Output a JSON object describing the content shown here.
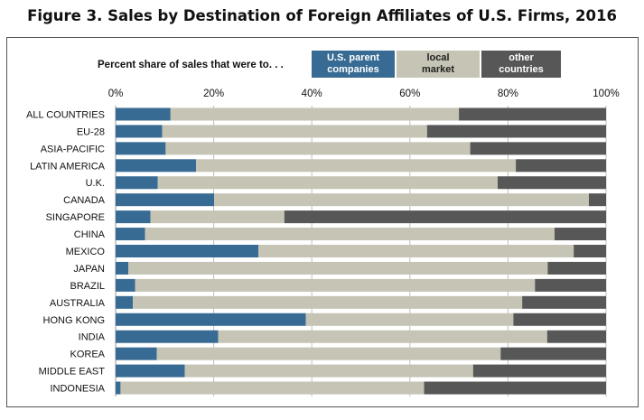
{
  "title": "Figure 3. Sales by Destination of Foreign Affiliates of U.S. Firms, 2016",
  "legend_lead": "Percent share of sales that were to. . .",
  "colors": {
    "us_parent": "#386b93",
    "local": "#c6c4b4",
    "other": "#575757",
    "grid": "#bfbfbf",
    "frame": "#555555"
  },
  "chart_data": {
    "type": "bar",
    "orientation": "horizontal",
    "stacked": true,
    "title": "Figure 3. Sales by Destination of Foreign Affiliates of U.S. Firms, 2016",
    "xlim": [
      0,
      100
    ],
    "x_ticks": [
      "0%",
      "20%",
      "40%",
      "60%",
      "80%",
      "100%"
    ],
    "grid": true,
    "legend_placement": "top",
    "categories": [
      "ALL COUNTRIES",
      "EU-28",
      "ASIA-PACIFIC",
      "LATIN AMERICA",
      "U.K.",
      "CANADA",
      "SINGAPORE",
      "CHINA",
      "MEXICO",
      "JAPAN",
      "BRAZIL",
      "AUSTRALIA",
      "HONG KONG",
      "INDIA",
      "KOREA",
      "MIDDLE EAST",
      "INDONESIA"
    ],
    "series": [
      {
        "name": "U.S. parent\ncompanies",
        "values": [
          11.2,
          9.5,
          10.2,
          16.4,
          8.6,
          20.1,
          7.1,
          6.0,
          29.1,
          2.6,
          4.0,
          3.5,
          38.8,
          20.9,
          8.4,
          14.1,
          1.0
        ]
      },
      {
        "name": "local\nmarket",
        "values": [
          58.8,
          54.0,
          62.1,
          65.2,
          69.3,
          76.4,
          27.3,
          83.5,
          64.3,
          85.5,
          81.5,
          79.4,
          42.3,
          67.1,
          70.1,
          58.8,
          61.9
        ]
      },
      {
        "name": "other\ncountries",
        "values": [
          30.0,
          36.5,
          27.7,
          18.4,
          22.1,
          3.5,
          65.6,
          10.5,
          6.6,
          11.9,
          14.5,
          17.1,
          18.9,
          12.0,
          21.5,
          27.1,
          37.1
        ]
      }
    ]
  }
}
